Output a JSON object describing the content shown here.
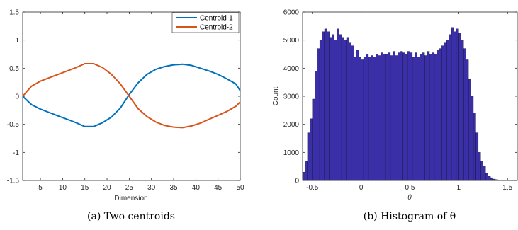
{
  "chart_data": [
    {
      "type": "line",
      "caption": "(a) Two centroids",
      "title": "",
      "xlabel": "Dimension",
      "ylabel": "",
      "xlim": [
        1,
        50
      ],
      "ylim": [
        -1.5,
        1.5
      ],
      "xticks": [
        5,
        10,
        15,
        20,
        25,
        30,
        35,
        40,
        45,
        50
      ],
      "yticks": [
        -1.5,
        -1,
        -0.5,
        0,
        0.5,
        1,
        1.5
      ],
      "grid": false,
      "legend_position": "top-right",
      "series": [
        {
          "name": "Centroid-1",
          "color": "#0072BD",
          "x": [
            1,
            3,
            5,
            7,
            9,
            11,
            13,
            15,
            17,
            19,
            21,
            23,
            25,
            27,
            29,
            31,
            33,
            35,
            37,
            39,
            41,
            43,
            45,
            47,
            49,
            50
          ],
          "y": [
            0.0,
            -0.15,
            -0.23,
            -0.29,
            -0.35,
            -0.41,
            -0.47,
            -0.54,
            -0.54,
            -0.47,
            -0.37,
            -0.21,
            0.03,
            0.24,
            0.39,
            0.48,
            0.53,
            0.56,
            0.57,
            0.55,
            0.5,
            0.45,
            0.39,
            0.31,
            0.22,
            0.1
          ]
        },
        {
          "name": "Centroid-2",
          "color": "#D95319",
          "x": [
            1,
            3,
            5,
            7,
            9,
            11,
            13,
            15,
            17,
            19,
            21,
            23,
            25,
            27,
            29,
            31,
            33,
            35,
            37,
            39,
            41,
            43,
            45,
            47,
            49,
            50
          ],
          "y": [
            0.0,
            0.18,
            0.27,
            0.33,
            0.39,
            0.45,
            0.51,
            0.58,
            0.58,
            0.51,
            0.39,
            0.22,
            0.0,
            -0.22,
            -0.36,
            -0.46,
            -0.52,
            -0.55,
            -0.56,
            -0.53,
            -0.48,
            -0.41,
            -0.34,
            -0.27,
            -0.18,
            -0.1
          ]
        }
      ]
    },
    {
      "type": "bar",
      "caption": "(b) Histogram of θ",
      "title": "",
      "xlabel": "θ",
      "ylabel": "Count",
      "xlim": [
        -0.6,
        1.6
      ],
      "ylim": [
        0,
        6000
      ],
      "xticks": [
        -0.5,
        0,
        0.5,
        1,
        1.5
      ],
      "yticks": [
        0,
        1000,
        2000,
        3000,
        4000,
        5000,
        6000
      ],
      "grid": false,
      "bar_color": "#3B2FA8",
      "bin_start": -0.6,
      "bin_width": 0.025,
      "values": [
        300,
        700,
        1700,
        2200,
        2900,
        3900,
        4700,
        5000,
        5300,
        5400,
        5300,
        5100,
        5200,
        5000,
        5400,
        5200,
        5100,
        5000,
        5100,
        4900,
        4800,
        4400,
        4650,
        4400,
        4300,
        4400,
        4500,
        4400,
        4450,
        4400,
        4500,
        4450,
        4550,
        4500,
        4500,
        4550,
        4450,
        4600,
        4450,
        4550,
        4600,
        4550,
        4500,
        4600,
        4550,
        4400,
        4550,
        4400,
        4500,
        4550,
        4450,
        4600,
        4500,
        4550,
        4500,
        4650,
        4700,
        4800,
        4900,
        5000,
        5200,
        5450,
        5300,
        5400,
        5250,
        5000,
        4700,
        4300,
        3600,
        3000,
        2400,
        1700,
        1000,
        700,
        500,
        250,
        150,
        100,
        50,
        30,
        20,
        10,
        5,
        3,
        2,
        1,
        1,
        1,
        1
      ]
    }
  ]
}
